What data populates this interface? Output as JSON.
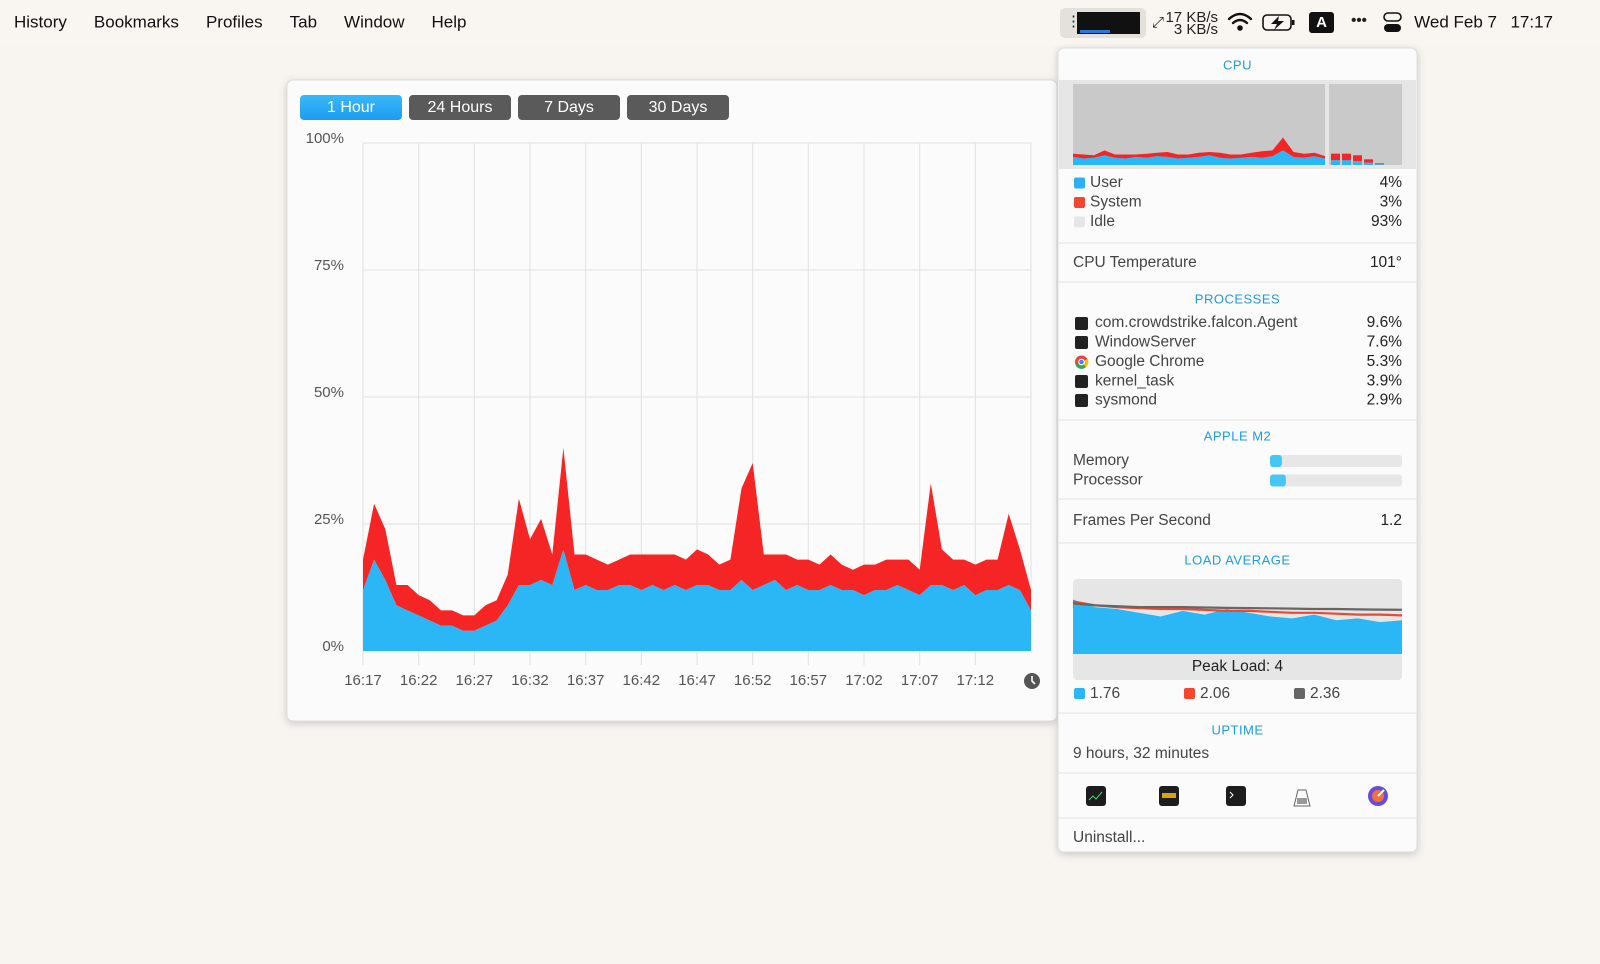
{
  "menubar": {
    "items": [
      "History",
      "Bookmarks",
      "Profiles",
      "Tab",
      "Window",
      "Help"
    ],
    "net_up": "17 KB/s",
    "net_down": "3 KB/s",
    "input": "A",
    "date": "Wed Feb 7",
    "time": "17:17"
  },
  "history_window": {
    "tabs": [
      "1 Hour",
      "24 Hours",
      "7 Days",
      "30 Days"
    ],
    "active_tab": 0
  },
  "chart_data": {
    "type": "area",
    "stacked": true,
    "x": [
      0,
      1,
      2,
      3,
      4,
      5,
      6,
      7,
      8,
      9,
      10,
      11,
      12,
      13,
      14,
      15,
      16,
      17,
      18,
      19,
      20,
      21,
      22,
      23,
      24,
      25,
      26,
      27,
      28,
      29,
      30,
      31,
      32,
      33,
      34,
      35,
      36,
      37,
      38,
      39,
      40,
      41,
      42,
      43,
      44,
      45,
      46,
      47,
      48,
      49,
      50,
      51,
      52,
      53,
      54,
      55,
      56,
      57,
      58,
      59,
      60
    ],
    "xlim": [
      0,
      60
    ],
    "xticks": [
      {
        "value": 0,
        "label": "16:17"
      },
      {
        "value": 5,
        "label": "16:22"
      },
      {
        "value": 10,
        "label": "16:27"
      },
      {
        "value": 15,
        "label": "16:32"
      },
      {
        "value": 20,
        "label": "16:37"
      },
      {
        "value": 25,
        "label": "16:42"
      },
      {
        "value": 30,
        "label": "16:47"
      },
      {
        "value": 35,
        "label": "16:52"
      },
      {
        "value": 40,
        "label": "16:57"
      },
      {
        "value": 45,
        "label": "17:02"
      },
      {
        "value": 50,
        "label": "17:07"
      },
      {
        "value": 55,
        "label": "17:12"
      }
    ],
    "ylim": [
      0,
      100
    ],
    "yticks": [
      {
        "value": 0,
        "label": "0%"
      },
      {
        "value": 25,
        "label": "25%"
      },
      {
        "value": 50,
        "label": "50%"
      },
      {
        "value": 75,
        "label": "75%"
      },
      {
        "value": 100,
        "label": "100%"
      }
    ],
    "grid": true,
    "series": [
      {
        "color": "#2bb6f6",
        "values": [
          12,
          18,
          14,
          9,
          8,
          7,
          6,
          5,
          5,
          4,
          4,
          5,
          6,
          9,
          13,
          13,
          14,
          13,
          20,
          12,
          13,
          12,
          12,
          13,
          13,
          12,
          13,
          12,
          13,
          12,
          13,
          13,
          12,
          12,
          14,
          12,
          13,
          14,
          12,
          13,
          12,
          12,
          13,
          12,
          12,
          11,
          12,
          12,
          13,
          12,
          11,
          13,
          13,
          12,
          13,
          11,
          12,
          12,
          13,
          12,
          8
        ]
      },
      {
        "color": "#f52525",
        "values": [
          6,
          11,
          10,
          4,
          5,
          4,
          4,
          3,
          3,
          3,
          3,
          4,
          4,
          6,
          17,
          9,
          12,
          6,
          20,
          7,
          6,
          6,
          5,
          5,
          6,
          7,
          6,
          7,
          6,
          6,
          7,
          6,
          5,
          6,
          18,
          25,
          6,
          5,
          7,
          5,
          6,
          5,
          6,
          5,
          4,
          6,
          5,
          6,
          5,
          6,
          5,
          20,
          7,
          6,
          5,
          6,
          6,
          6,
          14,
          8,
          4
        ]
      }
    ]
  },
  "cpu": {
    "title": "CPU",
    "history": {
      "ylim": [
        0,
        100
      ],
      "user": [
        10,
        8,
        9,
        12,
        9,
        8,
        10,
        9,
        11,
        10,
        8,
        9,
        10,
        12,
        9,
        8,
        9,
        10,
        9,
        11,
        18,
        10,
        9,
        11,
        8
      ],
      "system": [
        4,
        5,
        3,
        6,
        4,
        5,
        3,
        5,
        4,
        6,
        5,
        4,
        5,
        4,
        6,
        5,
        4,
        5,
        8,
        7,
        16,
        6,
        5,
        4,
        3
      ]
    },
    "recent": {
      "user": [
        6,
        6,
        5,
        3,
        1
      ],
      "system": [
        8,
        8,
        7,
        4,
        1
      ]
    },
    "legend": [
      {
        "label": "User",
        "value": "4%",
        "color": "#2bb0f3"
      },
      {
        "label": "System",
        "value": "3%",
        "color": "#f2462e"
      },
      {
        "label": "Idle",
        "value": "93%",
        "color": "#e6e6e6"
      }
    ],
    "temperature": {
      "label": "CPU Temperature",
      "value": "101°"
    }
  },
  "processes": {
    "title": "PROCESSES",
    "rows": [
      {
        "name": "com.crowdstrike.falcon.Agent",
        "value": "9.6%"
      },
      {
        "name": "WindowServer",
        "value": "7.6%"
      },
      {
        "name": "Google Chrome",
        "value": "5.3%"
      },
      {
        "name": "kernel_task",
        "value": "3.9%"
      },
      {
        "name": "sysmond",
        "value": "2.9%"
      }
    ]
  },
  "soc": {
    "title": "APPLE M2",
    "rows": [
      {
        "label": "Memory",
        "value": 9
      },
      {
        "label": "Processor",
        "value": 12
      }
    ]
  },
  "fps": {
    "label": "Frames Per Second",
    "value": "1.2"
  },
  "load": {
    "title": "LOAD AVERAGE",
    "peak": "Peak Load: 4",
    "ylim": [
      0,
      4
    ],
    "series": [
      {
        "color": "#2bb6f6",
        "values": [
          2.9,
          2.5,
          2.4,
          2.2,
          2.0,
          2.3,
          2.1,
          2.4,
          2.2,
          2.0,
          1.9,
          2.1,
          1.8,
          1.9,
          1.7,
          1.8
        ]
      },
      {
        "color": "#f2462e",
        "values": [
          2.8,
          2.6,
          2.5,
          2.45,
          2.4,
          2.4,
          2.35,
          2.3,
          2.3,
          2.25,
          2.2,
          2.2,
          2.15,
          2.1,
          2.1,
          2.06
        ]
      },
      {
        "color": "#666666",
        "values": [
          2.7,
          2.6,
          2.55,
          2.5,
          2.5,
          2.5,
          2.48,
          2.46,
          2.45,
          2.44,
          2.42,
          2.4,
          2.4,
          2.38,
          2.37,
          2.36
        ]
      }
    ],
    "legend": [
      "1.76",
      "2.06",
      "2.36"
    ]
  },
  "uptime": {
    "title": "UPTIME",
    "value": "9 hours, 32 minutes"
  },
  "footer": "Uninstall..."
}
